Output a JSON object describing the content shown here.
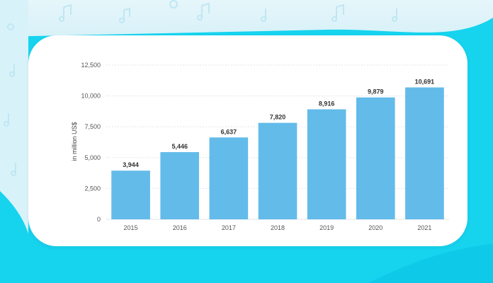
{
  "colors": {
    "bar": "#63bbea",
    "background": "#16d3ee",
    "card": "#ffffff",
    "grid": "#dfe5ea"
  },
  "chart_data": {
    "type": "bar",
    "categories": [
      "2015",
      "2016",
      "2017",
      "2018",
      "2019",
      "2020",
      "2021"
    ],
    "values": [
      3944,
      5446,
      6637,
      7820,
      8916,
      9879,
      10691
    ],
    "value_labels": [
      "3,944",
      "5,446",
      "6,637",
      "7,820",
      "8,916",
      "9,879",
      "10,691"
    ],
    "title": "",
    "xlabel": "",
    "ylabel": "in million US$",
    "ylim": [
      0,
      12500
    ],
    "yticks": [
      0,
      2500,
      5000,
      7500,
      10000,
      12500
    ],
    "ytick_labels": [
      "0",
      "2,500",
      "5,000",
      "7,500",
      "10,000",
      "12,500"
    ],
    "grid": true,
    "legend": "none"
  }
}
